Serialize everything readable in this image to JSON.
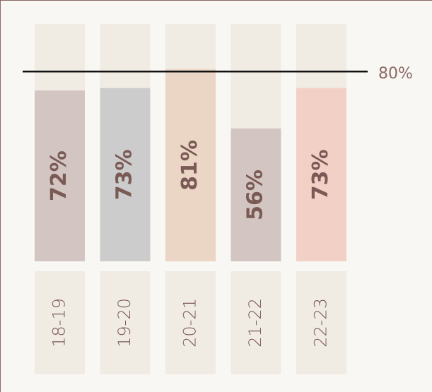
{
  "chart_data": {
    "type": "bar",
    "categories": [
      "18-19",
      "19-20",
      "20-21",
      "21-22",
      "22-23"
    ],
    "values": [
      72,
      73,
      81,
      56,
      73
    ],
    "value_labels": [
      "72%",
      "73%",
      "81%",
      "56%",
      "73%"
    ],
    "colors": [
      "#d3c5c2",
      "#cccccc",
      "#ebd5c5",
      "#d3c5c2",
      "#f2d0c6"
    ],
    "ylim": [
      0,
      100
    ],
    "reference_line": {
      "value": 80,
      "label": "80%"
    }
  }
}
